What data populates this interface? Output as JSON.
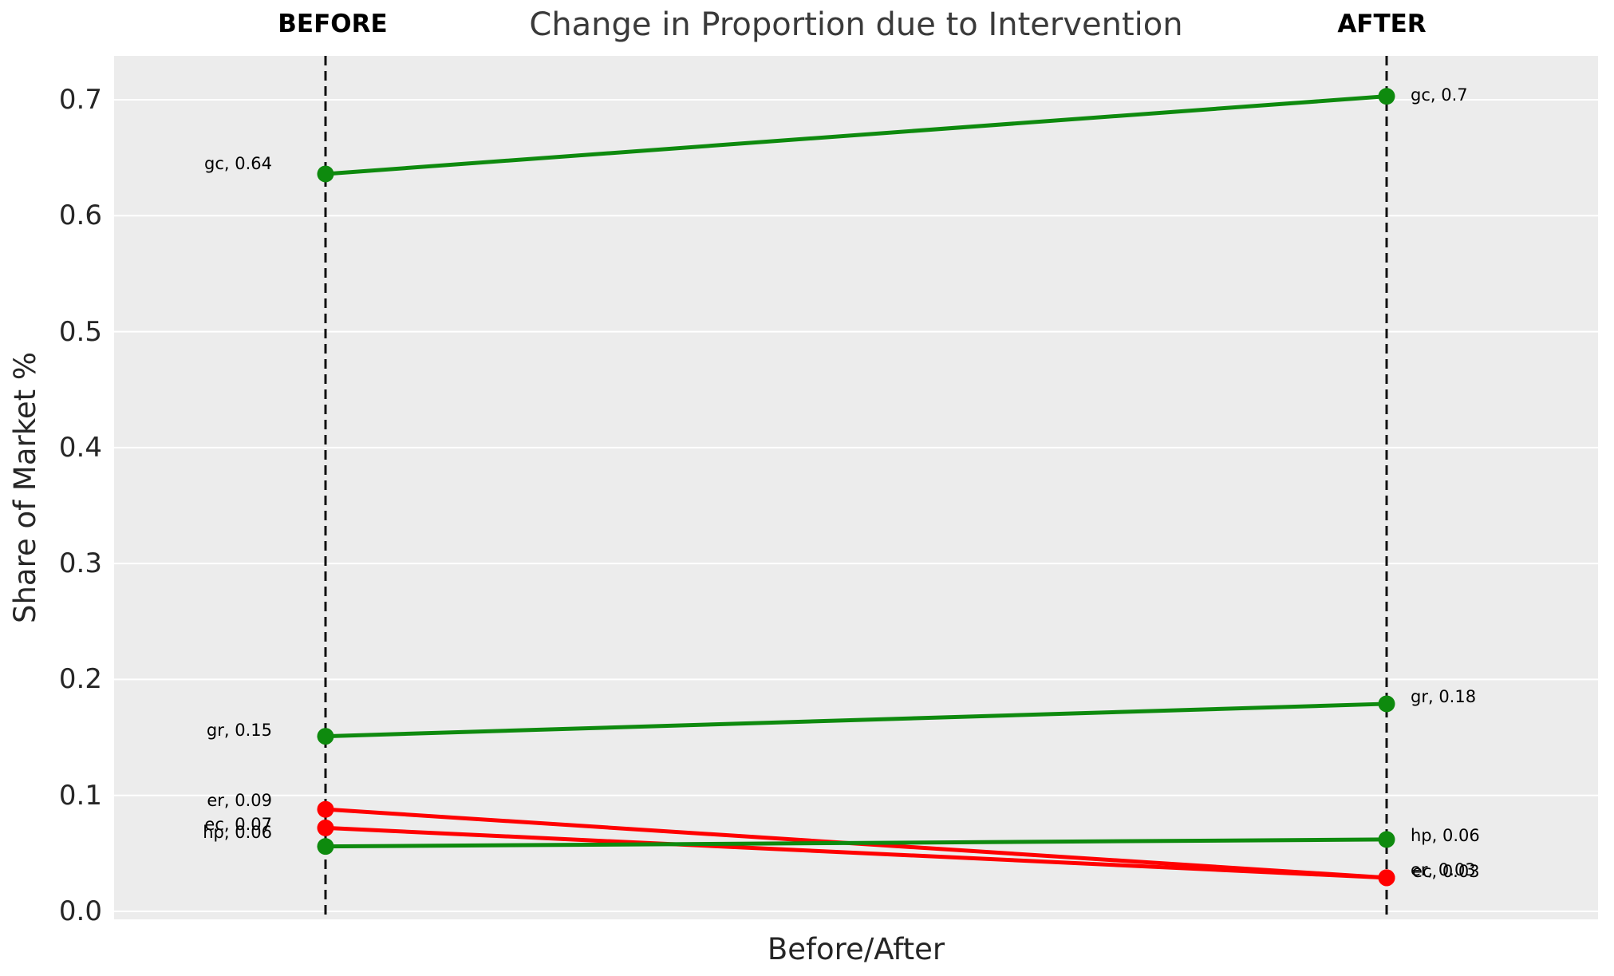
{
  "title": "Change in Proportion due to Intervention",
  "column_headers": {
    "before": "BEFORE",
    "after": "AFTER"
  },
  "axes": {
    "y_label": "Share of Market %",
    "x_label": "Before/After",
    "y_tick_labels": [
      "0.0",
      "0.1",
      "0.2",
      "0.3",
      "0.4",
      "0.5",
      "0.6",
      "0.7"
    ],
    "y_tick_values": [
      0.0,
      0.1,
      0.2,
      0.3,
      0.4,
      0.5,
      0.6,
      0.7
    ]
  },
  "colors": {
    "increase_line": "#0e8a0e",
    "decrease_line": "#ff0000",
    "plot_background": "#ececec",
    "gridline": "#ffffff",
    "dashed_guide_line": "#111111",
    "title_text": "#3a3a3a",
    "tick_text": "#262626"
  },
  "chart_data": {
    "type": "line",
    "subtype": "slope-chart",
    "title": "Change in Proportion due to Intervention",
    "xlabel": "Before/After",
    "ylabel": "Share of Market %",
    "x_categories": [
      "BEFORE",
      "AFTER"
    ],
    "ylim": [
      0,
      0.74
    ],
    "grid": true,
    "legend": "none",
    "series": [
      {
        "name": "gc",
        "values": [
          0.636,
          0.703
        ],
        "displayed": [
          0.64,
          0.7
        ],
        "labels": [
          "gc, 0.64",
          "gc, 0.7"
        ],
        "trend": "increase"
      },
      {
        "name": "gr",
        "values": [
          0.151,
          0.179
        ],
        "displayed": [
          0.15,
          0.18
        ],
        "labels": [
          "gr, 0.15",
          "gr, 0.18"
        ],
        "trend": "increase"
      },
      {
        "name": "er",
        "values": [
          0.088,
          0.029
        ],
        "displayed": [
          0.09,
          0.03
        ],
        "labels": [
          "er, 0.09",
          "er, 0.03"
        ],
        "trend": "decrease"
      },
      {
        "name": "ec",
        "values": [
          0.072,
          0.029
        ],
        "displayed": [
          0.07,
          0.03
        ],
        "labels": [
          "ec, 0.07",
          "ec, 0.03"
        ],
        "trend": "decrease"
      },
      {
        "name": "hp",
        "values": [
          0.056,
          0.062
        ],
        "displayed": [
          0.06,
          0.06
        ],
        "labels": [
          "hp, 0.06",
          "hp, 0.06"
        ],
        "trend": "increase"
      }
    ],
    "label_offsets": {
      "left": {
        "gc": -13,
        "gr": -8,
        "er": -11,
        "ec": -4,
        "hp": -18
      },
      "right": {
        "gc": -2,
        "gr": -9,
        "er": -10,
        "ec": -8,
        "hp": -5
      },
      "right_dx": {
        "ec": 2
      }
    }
  }
}
